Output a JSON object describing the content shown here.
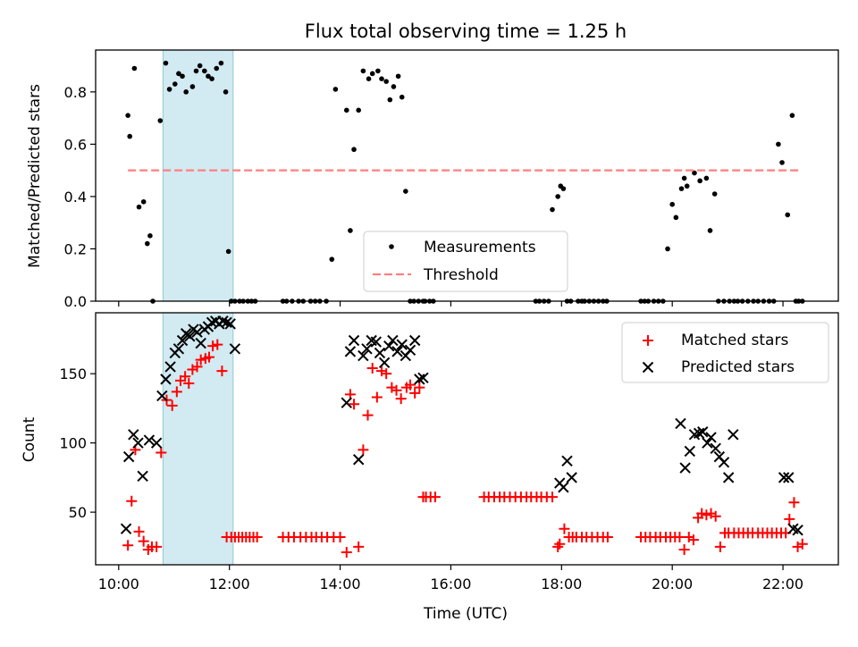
{
  "colors": {
    "measurement": "#000000",
    "threshold": "#ff7f7f",
    "matched": "#ff0000",
    "predicted": "#000000",
    "highlight": "#add8e6"
  },
  "chart_data": [
    {
      "type": "scatter",
      "title": "Flux total observing time = 1.25 h",
      "xlabel": "",
      "ylabel": "Matched/Predicted stars",
      "xlim": [
        "09:35",
        "23:00"
      ],
      "ylim": [
        0,
        0.96
      ],
      "yticks": [
        0.0,
        0.2,
        0.4,
        0.6,
        0.8
      ],
      "ytick_labels": [
        "0.0",
        "0.2",
        "0.4",
        "0.6",
        "0.8"
      ],
      "highlight_span": [
        "10:48",
        "12:04"
      ],
      "legend": {
        "position": "lower-center",
        "entries": [
          "Measurements",
          "Threshold"
        ]
      },
      "series": [
        {
          "name": "Measurements",
          "kind": "points",
          "x": [
            "10:10",
            "10:12",
            "10:17",
            "10:22",
            "10:27",
            "10:31",
            "10:34",
            "10:37",
            "10:45",
            "10:51",
            "10:55",
            "11:01",
            "11:05",
            "11:09",
            "11:13",
            "11:20",
            "11:24",
            "11:28",
            "11:33",
            "11:37",
            "11:41",
            "11:46",
            "11:51",
            "11:56",
            "11:59",
            "12:02",
            "12:06",
            "12:11",
            "12:15",
            "12:20",
            "12:24",
            "12:28",
            "12:58",
            "13:02",
            "13:08",
            "13:15",
            "13:20",
            "13:28",
            "13:33",
            "13:38",
            "13:45",
            "13:51",
            "13:55",
            "14:07",
            "14:11",
            "14:15",
            "14:20",
            "14:25",
            "14:31",
            "14:35",
            "14:41",
            "14:45",
            "14:50",
            "14:54",
            "14:58",
            "15:03",
            "15:07",
            "15:11",
            "15:16",
            "15:20",
            "15:25",
            "15:30",
            "15:32",
            "15:37",
            "15:41",
            "17:32",
            "17:36",
            "17:41",
            "17:46",
            "17:50",
            "17:56",
            "17:59",
            "18:02",
            "18:06",
            "18:10",
            "18:18",
            "18:22",
            "18:25",
            "18:30",
            "18:35",
            "18:40",
            "18:45",
            "18:49",
            "19:26",
            "19:30",
            "19:34",
            "19:40",
            "19:45",
            "19:50",
            "19:55",
            "20:00",
            "20:04",
            "20:10",
            "20:13",
            "20:16",
            "20:24",
            "20:30",
            "20:37",
            "20:41",
            "20:46",
            "20:50",
            "20:56",
            "21:02",
            "21:07",
            "21:11",
            "21:16",
            "21:22",
            "21:28",
            "21:33",
            "21:39",
            "21:45",
            "21:50",
            "21:55",
            "21:59",
            "22:05",
            "22:10",
            "22:14",
            "22:17",
            "22:21"
          ],
          "y": [
            0.71,
            0.63,
            0.89,
            0.36,
            0.38,
            0.22,
            0.25,
            0.0,
            0.69,
            0.91,
            0.81,
            0.83,
            0.87,
            0.86,
            0.8,
            0.82,
            0.88,
            0.9,
            0.88,
            0.86,
            0.85,
            0.89,
            0.91,
            0.8,
            0.19,
            0.0,
            0.0,
            0.0,
            0.0,
            0.0,
            0.0,
            0.0,
            0.0,
            0.0,
            0.0,
            0.0,
            0.0,
            0.0,
            0.0,
            0.0,
            0.0,
            0.16,
            0.81,
            0.73,
            0.27,
            0.58,
            0.73,
            0.88,
            0.85,
            0.87,
            0.88,
            0.85,
            0.84,
            0.77,
            0.82,
            0.86,
            0.78,
            0.42,
            0.0,
            0.0,
            0.0,
            0.0,
            0.0,
            0.0,
            0.0,
            0.0,
            0.0,
            0.0,
            0.0,
            0.35,
            0.4,
            0.44,
            0.43,
            0.0,
            0.0,
            0.0,
            0.0,
            0.0,
            0.0,
            0.0,
            0.0,
            0.0,
            0.0,
            0.0,
            0.0,
            0.0,
            0.0,
            0.0,
            0.0,
            0.2,
            0.37,
            0.32,
            0.43,
            0.47,
            0.44,
            0.49,
            0.46,
            0.47,
            0.27,
            0.41,
            0.0,
            0.0,
            0.0,
            0.0,
            0.0,
            0.0,
            0.0,
            0.0,
            0.0,
            0.0,
            0.0,
            0.0,
            0.6,
            0.53,
            0.33,
            0.71,
            0.0,
            0.0,
            0.0
          ]
        },
        {
          "name": "Threshold",
          "kind": "dashed-line",
          "x": [
            "10:10",
            "22:20"
          ],
          "y": [
            0.5,
            0.5
          ]
        }
      ]
    },
    {
      "type": "scatter",
      "title": "",
      "xlabel": "Time (UTC)",
      "ylabel": "Count",
      "xlim": [
        "09:35",
        "23:00"
      ],
      "ylim": [
        12,
        194
      ],
      "yticks": [
        50,
        100,
        150
      ],
      "ytick_labels": [
        "50",
        "100",
        "150"
      ],
      "xticks": [
        "10:00",
        "12:00",
        "14:00",
        "16:00",
        "18:00",
        "20:00",
        "22:00"
      ],
      "xtick_labels": [
        "10:00",
        "12:00",
        "14:00",
        "16:00",
        "18:00",
        "20:00",
        "22:00"
      ],
      "highlight_span": [
        "10:48",
        "12:04"
      ],
      "legend": {
        "position": "top-right",
        "entries": [
          "Matched stars",
          "Predicted stars"
        ]
      },
      "series": [
        {
          "name": "Matched stars",
          "marker": "+",
          "x": [
            "10:10",
            "10:14",
            "10:18",
            "10:22",
            "10:27",
            "10:32",
            "10:36",
            "10:41",
            "10:46",
            "10:52",
            "10:58",
            "11:03",
            "11:07",
            "11:12",
            "11:16",
            "11:20",
            "11:25",
            "11:29",
            "11:34",
            "11:38",
            "11:42",
            "11:47",
            "11:52",
            "11:57",
            "12:02",
            "12:06",
            "12:10",
            "12:14",
            "12:18",
            "12:22",
            "12:26",
            "12:30",
            "12:58",
            "13:04",
            "13:10",
            "13:17",
            "13:23",
            "13:29",
            "13:34",
            "13:40",
            "13:46",
            "13:53",
            "14:00",
            "14:07",
            "14:11",
            "14:15",
            "14:20",
            "14:25",
            "14:30",
            "14:35",
            "14:40",
            "14:45",
            "14:50",
            "14:56",
            "15:01",
            "15:06",
            "15:12",
            "15:16",
            "15:21",
            "15:26",
            "15:30",
            "15:33",
            "15:38",
            "15:43",
            "16:36",
            "16:41",
            "16:47",
            "16:53",
            "16:58",
            "17:04",
            "17:10",
            "17:16",
            "17:22",
            "17:27",
            "17:33",
            "17:38",
            "17:44",
            "17:50",
            "17:56",
            "17:58",
            "18:03",
            "18:08",
            "18:12",
            "18:16",
            "18:22",
            "18:27",
            "18:33",
            "18:39",
            "18:45",
            "18:50",
            "19:26",
            "19:31",
            "19:36",
            "19:42",
            "19:47",
            "19:53",
            "19:58",
            "20:03",
            "20:08",
            "20:13",
            "20:18",
            "20:23",
            "20:28",
            "20:32",
            "20:37",
            "20:42",
            "20:47",
            "20:52",
            "20:57",
            "21:01",
            "21:07",
            "21:12",
            "21:17",
            "21:22",
            "21:27",
            "21:33",
            "21:38",
            "21:43",
            "21:48",
            "21:53",
            "21:58",
            "22:03",
            "22:07",
            "22:12",
            "22:16",
            "22:21"
          ],
          "y": [
            26,
            58,
            95,
            36,
            29,
            23,
            25,
            25,
            93,
            131,
            127,
            137,
            145,
            148,
            143,
            153,
            155,
            160,
            161,
            162,
            170,
            171,
            152,
            32,
            32,
            32,
            32,
            32,
            32,
            32,
            32,
            32,
            32,
            32,
            32,
            32,
            32,
            32,
            32,
            32,
            32,
            32,
            32,
            21,
            135,
            128,
            25,
            95,
            120,
            154,
            133,
            152,
            150,
            140,
            138,
            132,
            140,
            142,
            136,
            140,
            61,
            61,
            61,
            61,
            61,
            61,
            61,
            61,
            61,
            61,
            61,
            61,
            61,
            61,
            61,
            61,
            61,
            61,
            25,
            27,
            38,
            32,
            32,
            32,
            32,
            32,
            32,
            32,
            32,
            32,
            32,
            32,
            32,
            32,
            32,
            32,
            32,
            32,
            32,
            23,
            32,
            30,
            46,
            49,
            48,
            49,
            47,
            25,
            35,
            35,
            35,
            35,
            35,
            35,
            35,
            35,
            35,
            35,
            35,
            35,
            35,
            35,
            45,
            57,
            25,
            27
          ]
        },
        {
          "name": "Predicted stars",
          "marker": "x",
          "x": [
            "10:08",
            "10:11",
            "10:16",
            "10:21",
            "10:26",
            "10:33",
            "10:41",
            "10:47",
            "10:51",
            "10:56",
            "11:01",
            "11:05",
            "11:09",
            "11:13",
            "11:17",
            "11:21",
            "11:25",
            "11:29",
            "11:33",
            "11:37",
            "11:41",
            "11:45",
            "11:49",
            "11:53",
            "11:57",
            "12:01",
            "12:06",
            "14:07",
            "14:11",
            "14:15",
            "14:20",
            "14:25",
            "14:29",
            "14:34",
            "14:39",
            "14:43",
            "14:48",
            "14:53",
            "14:57",
            "15:02",
            "15:07",
            "15:11",
            "15:16",
            "15:21",
            "15:26",
            "15:30",
            "17:58",
            "18:02",
            "18:06",
            "18:11",
            "20:09",
            "20:14",
            "20:19",
            "20:24",
            "20:29",
            "20:33",
            "20:38",
            "20:42",
            "20:47",
            "20:51",
            "20:56",
            "21:01",
            "21:06",
            "22:01",
            "22:06",
            "22:11",
            "22:16"
          ],
          "y": [
            38,
            90,
            106,
            100,
            76,
            102,
            100,
            134,
            146,
            155,
            165,
            168,
            174,
            179,
            177,
            182,
            180,
            172,
            182,
            184,
            187,
            188,
            186,
            188,
            187,
            186,
            168,
            129,
            166,
            174,
            88,
            163,
            168,
            174,
            173,
            165,
            158,
            170,
            174,
            166,
            171,
            163,
            167,
            174,
            146,
            147,
            71,
            68,
            87,
            75,
            114,
            82,
            94,
            106,
            107,
            108,
            100,
            104,
            96,
            90,
            86,
            75,
            106,
            75,
            75,
            38,
            37
          ]
        }
      ]
    }
  ]
}
